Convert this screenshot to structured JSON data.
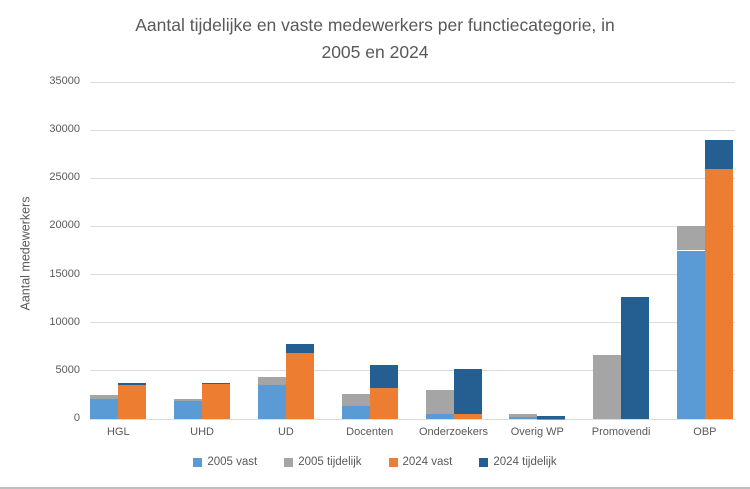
{
  "chart_data": {
    "type": "bar",
    "stacked": true,
    "title": "Aantal tijdelijke en vaste medewerkers per functiecategorie, in 2005 en 2024",
    "title_lines": [
      "Aantal tijdelijke en vaste medewerkers per functiecategorie, in",
      "2005 en 2024"
    ],
    "ylabel": "Aantal medewerkers",
    "ylim": [
      0,
      35000
    ],
    "yticks": [
      0,
      5000,
      10000,
      15000,
      20000,
      25000,
      30000,
      35000
    ],
    "grid": true,
    "legend_position": "bottom",
    "categories": [
      "HGL",
      "UHD",
      "UD",
      "Docenten",
      "Onderzoekers",
      "Overig WP",
      "Promovendi",
      "OBP"
    ],
    "series": [
      {
        "name": "2005 vast",
        "stack": "2005",
        "color": "#5B9BD5",
        "values": [
          2100,
          1900,
          3500,
          1300,
          550,
          200,
          0,
          17500
        ]
      },
      {
        "name": "2005 tijdelijk",
        "stack": "2005",
        "color": "#A5A5A5",
        "values": [
          400,
          150,
          900,
          1300,
          2500,
          350,
          6650,
          2500
        ]
      },
      {
        "name": "2024 vast",
        "stack": "2024",
        "color": "#ED7D31",
        "values": [
          3550,
          3600,
          6900,
          3250,
          500,
          50,
          0,
          26000
        ]
      },
      {
        "name": "2024 tijdelijk",
        "stack": "2024",
        "color": "#255E91",
        "values": [
          200,
          150,
          850,
          2350,
          4650,
          300,
          12700,
          3000
        ]
      }
    ],
    "legend": [
      "2005 vast",
      "2005 tijdelijk",
      "2024 vast",
      "2024 tijdelijk"
    ],
    "colors": {
      "text": "#595959",
      "gridline": "#DCDCDC",
      "blue_2005_vast": "#5B9BD5",
      "gray_2005_tijdelijk": "#A5A5A5",
      "orange_2024_vast": "#ED7D31",
      "darkblue_2024_tijdelijk": "#255E91"
    }
  }
}
